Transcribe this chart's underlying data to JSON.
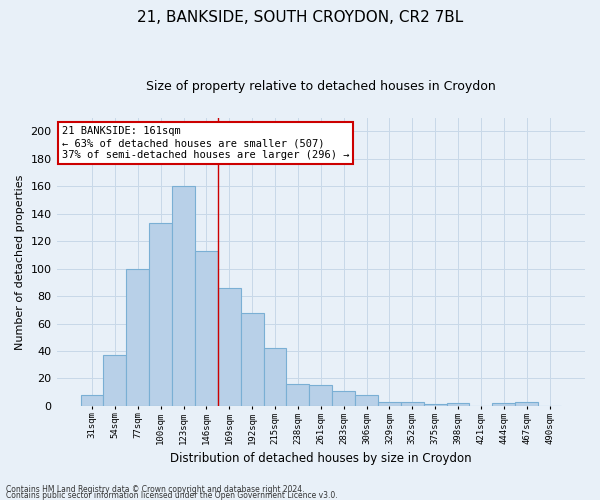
{
  "title1": "21, BANKSIDE, SOUTH CROYDON, CR2 7BL",
  "title2": "Size of property relative to detached houses in Croydon",
  "xlabel": "Distribution of detached houses by size in Croydon",
  "ylabel": "Number of detached properties",
  "categories": [
    "31sqm",
    "54sqm",
    "77sqm",
    "100sqm",
    "123sqm",
    "146sqm",
    "169sqm",
    "192sqm",
    "215sqm",
    "238sqm",
    "261sqm",
    "283sqm",
    "306sqm",
    "329sqm",
    "352sqm",
    "375sqm",
    "398sqm",
    "421sqm",
    "444sqm",
    "467sqm",
    "490sqm"
  ],
  "values": [
    8,
    37,
    100,
    133,
    160,
    113,
    86,
    68,
    42,
    16,
    15,
    11,
    8,
    3,
    3,
    1,
    2,
    0,
    2,
    3,
    0
  ],
  "bar_color": "#b8d0e8",
  "bar_edge_color": "#7aafd4",
  "annotation_line1": "21 BANKSIDE: 161sqm",
  "annotation_line2": "← 63% of detached houses are smaller (507)",
  "annotation_line3": "37% of semi-detached houses are larger (296) →",
  "annotation_box_color": "#ffffff",
  "annotation_box_edge_color": "#cc0000",
  "vline_color": "#cc0000",
  "grid_color": "#c8d8e8",
  "background_color": "#e8f0f8",
  "footer_line1": "Contains HM Land Registry data © Crown copyright and database right 2024.",
  "footer_line2": "Contains public sector information licensed under the Open Government Licence v3.0.",
  "ylim": [
    0,
    210
  ],
  "yticks": [
    0,
    20,
    40,
    60,
    80,
    100,
    120,
    140,
    160,
    180,
    200
  ],
  "vline_bin_index": 5,
  "figwidth": 6.0,
  "figheight": 5.0,
  "dpi": 100
}
